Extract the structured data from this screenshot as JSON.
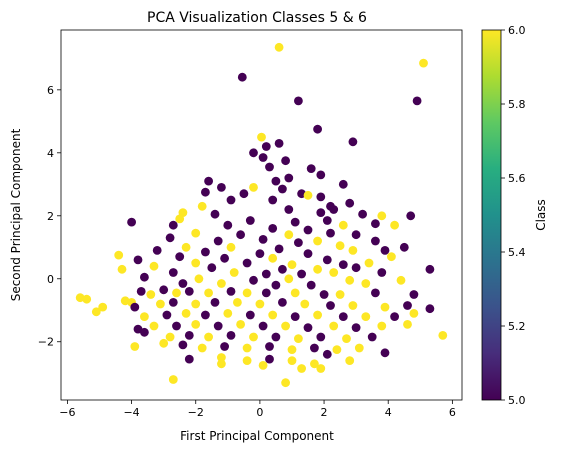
{
  "chart_data": {
    "type": "scatter",
    "title": "PCA Visualization Classes 5 & 6",
    "xlabel": "First Principal Component",
    "ylabel": "Second Principal Component",
    "xlim": [
      -6.2,
      6.3
    ],
    "ylim": [
      -3.85,
      7.9
    ],
    "xticks": [
      -6,
      -4,
      -2,
      0,
      2,
      4,
      6
    ],
    "yticks": [
      -2,
      0,
      2,
      4,
      6
    ],
    "grid": false,
    "colorbar": {
      "label": "Class",
      "colormap": "viridis",
      "range": [
        5.0,
        6.0
      ],
      "ticks": [
        "5.0",
        "5.2",
        "5.4",
        "5.6",
        "5.8",
        "6.0"
      ]
    },
    "classes": [
      {
        "value": 5,
        "color": "#440154"
      },
      {
        "value": 6,
        "color": "#fde725"
      }
    ],
    "points": [
      {
        "x": 0.6,
        "y": 7.35,
        "c": 6
      },
      {
        "x": 5.1,
        "y": 6.85,
        "c": 6
      },
      {
        "x": -0.55,
        "y": 6.4,
        "c": 5
      },
      {
        "x": 4.9,
        "y": 5.65,
        "c": 5
      },
      {
        "x": 1.2,
        "y": 5.65,
        "c": 5
      },
      {
        "x": 1.8,
        "y": 4.75,
        "c": 5
      },
      {
        "x": 0.05,
        "y": 4.5,
        "c": 6
      },
      {
        "x": 2.9,
        "y": 4.35,
        "c": 5
      },
      {
        "x": 0.6,
        "y": 4.3,
        "c": 5
      },
      {
        "x": 0.2,
        "y": 4.2,
        "c": 5
      },
      {
        "x": -0.2,
        "y": 4.0,
        "c": 5
      },
      {
        "x": 0.1,
        "y": 3.85,
        "c": 5
      },
      {
        "x": 0.8,
        "y": 3.75,
        "c": 5
      },
      {
        "x": 1.6,
        "y": 3.5,
        "c": 5
      },
      {
        "x": 0.3,
        "y": 3.55,
        "c": 5
      },
      {
        "x": 0.9,
        "y": 3.2,
        "c": 5
      },
      {
        "x": 0.5,
        "y": 3.1,
        "c": 5
      },
      {
        "x": -1.6,
        "y": 3.1,
        "c": 5
      },
      {
        "x": 1.9,
        "y": 3.3,
        "c": 5
      },
      {
        "x": -0.2,
        "y": 2.9,
        "c": 6
      },
      {
        "x": -1.2,
        "y": 2.9,
        "c": 5
      },
      {
        "x": 2.6,
        "y": 3.0,
        "c": 5
      },
      {
        "x": 0.7,
        "y": 2.85,
        "c": 5
      },
      {
        "x": 1.3,
        "y": 2.7,
        "c": 5
      },
      {
        "x": -1.7,
        "y": 2.75,
        "c": 5
      },
      {
        "x": -0.5,
        "y": 2.7,
        "c": 5
      },
      {
        "x": 1.9,
        "y": 2.6,
        "c": 5
      },
      {
        "x": 1.5,
        "y": 2.65,
        "c": 6
      },
      {
        "x": 0.4,
        "y": 2.5,
        "c": 5
      },
      {
        "x": -0.9,
        "y": 2.5,
        "c": 5
      },
      {
        "x": 2.8,
        "y": 2.4,
        "c": 5
      },
      {
        "x": 2.2,
        "y": 2.3,
        "c": 5
      },
      {
        "x": -1.8,
        "y": 2.3,
        "c": 6
      },
      {
        "x": 0.9,
        "y": 2.2,
        "c": 5
      },
      {
        "x": 1.9,
        "y": 2.1,
        "c": 5
      },
      {
        "x": 2.3,
        "y": 2.2,
        "c": 5
      },
      {
        "x": -2.4,
        "y": 2.1,
        "c": 6
      },
      {
        "x": -1.4,
        "y": 2.05,
        "c": 5
      },
      {
        "x": 3.2,
        "y": 2.05,
        "c": 5
      },
      {
        "x": 4.7,
        "y": 2.0,
        "c": 5
      },
      {
        "x": -2.5,
        "y": 1.9,
        "c": 6
      },
      {
        "x": -0.3,
        "y": 1.85,
        "c": 5
      },
      {
        "x": 1.1,
        "y": 1.8,
        "c": 5
      },
      {
        "x": 2.1,
        "y": 1.85,
        "c": 5
      },
      {
        "x": 3.8,
        "y": 2.0,
        "c": 6
      },
      {
        "x": 4.2,
        "y": 1.7,
        "c": 6
      },
      {
        "x": -4.0,
        "y": 1.8,
        "c": 5
      },
      {
        "x": -2.7,
        "y": 1.7,
        "c": 5
      },
      {
        "x": -1.0,
        "y": 1.7,
        "c": 5
      },
      {
        "x": 0.4,
        "y": 1.6,
        "c": 5
      },
      {
        "x": 1.5,
        "y": 1.55,
        "c": 5
      },
      {
        "x": 2.6,
        "y": 1.7,
        "c": 6
      },
      {
        "x": 3.6,
        "y": 1.75,
        "c": 5
      },
      {
        "x": -2.0,
        "y": 1.45,
        "c": 6
      },
      {
        "x": -0.6,
        "y": 1.4,
        "c": 5
      },
      {
        "x": 0.9,
        "y": 1.4,
        "c": 6
      },
      {
        "x": 2.2,
        "y": 1.45,
        "c": 5
      },
      {
        "x": 3.0,
        "y": 1.4,
        "c": 5
      },
      {
        "x": -2.8,
        "y": 1.3,
        "c": 5
      },
      {
        "x": -1.3,
        "y": 1.2,
        "c": 5
      },
      {
        "x": 0.1,
        "y": 1.25,
        "c": 5
      },
      {
        "x": 1.2,
        "y": 1.15,
        "c": 5
      },
      {
        "x": 1.8,
        "y": 1.2,
        "c": 6
      },
      {
        "x": 3.6,
        "y": 1.2,
        "c": 5
      },
      {
        "x": -2.3,
        "y": 1.0,
        "c": 6
      },
      {
        "x": -0.9,
        "y": 1.0,
        "c": 6
      },
      {
        "x": 0.6,
        "y": 0.95,
        "c": 5
      },
      {
        "x": 2.5,
        "y": 1.05,
        "c": 6
      },
      {
        "x": 4.5,
        "y": 1.0,
        "c": 5
      },
      {
        "x": -3.2,
        "y": 0.9,
        "c": 5
      },
      {
        "x": -1.7,
        "y": 0.85,
        "c": 5
      },
      {
        "x": 0.0,
        "y": 0.8,
        "c": 5
      },
      {
        "x": 1.5,
        "y": 0.8,
        "c": 5
      },
      {
        "x": 2.9,
        "y": 0.9,
        "c": 6
      },
      {
        "x": 3.9,
        "y": 0.9,
        "c": 5
      },
      {
        "x": -4.4,
        "y": 0.75,
        "c": 6
      },
      {
        "x": -2.5,
        "y": 0.7,
        "c": 5
      },
      {
        "x": -1.1,
        "y": 0.65,
        "c": 5
      },
      {
        "x": 0.4,
        "y": 0.65,
        "c": 6
      },
      {
        "x": 2.1,
        "y": 0.6,
        "c": 5
      },
      {
        "x": 4.1,
        "y": 0.7,
        "c": 6
      },
      {
        "x": -3.8,
        "y": 0.6,
        "c": 5
      },
      {
        "x": -2.0,
        "y": 0.5,
        "c": 6
      },
      {
        "x": -0.4,
        "y": 0.5,
        "c": 5
      },
      {
        "x": 1.0,
        "y": 0.45,
        "c": 6
      },
      {
        "x": 2.6,
        "y": 0.45,
        "c": 5
      },
      {
        "x": 3.4,
        "y": 0.5,
        "c": 6
      },
      {
        "x": -3.3,
        "y": 0.4,
        "c": 6
      },
      {
        "x": -1.5,
        "y": 0.35,
        "c": 5
      },
      {
        "x": 0.7,
        "y": 0.3,
        "c": 5
      },
      {
        "x": 1.8,
        "y": 0.3,
        "c": 6
      },
      {
        "x": 3.0,
        "y": 0.35,
        "c": 5
      },
      {
        "x": 5.3,
        "y": 0.3,
        "c": 5
      },
      {
        "x": -4.3,
        "y": 0.3,
        "c": 6
      },
      {
        "x": -2.7,
        "y": 0.2,
        "c": 5
      },
      {
        "x": -0.8,
        "y": 0.2,
        "c": 6
      },
      {
        "x": 0.2,
        "y": 0.15,
        "c": 5
      },
      {
        "x": 1.3,
        "y": 0.15,
        "c": 5
      },
      {
        "x": 2.3,
        "y": 0.2,
        "c": 6
      },
      {
        "x": 3.8,
        "y": 0.2,
        "c": 5
      },
      {
        "x": -3.6,
        "y": 0.05,
        "c": 5
      },
      {
        "x": -1.9,
        "y": 0.0,
        "c": 6
      },
      {
        "x": -0.2,
        "y": -0.05,
        "c": 5
      },
      {
        "x": 0.9,
        "y": 0.0,
        "c": 6
      },
      {
        "x": 2.8,
        "y": -0.05,
        "c": 6
      },
      {
        "x": 4.4,
        "y": -0.05,
        "c": 6
      },
      {
        "x": -2.4,
        "y": -0.15,
        "c": 5
      },
      {
        "x": -1.2,
        "y": -0.15,
        "c": 6
      },
      {
        "x": 0.5,
        "y": -0.2,
        "c": 5
      },
      {
        "x": 1.6,
        "y": -0.2,
        "c": 5
      },
      {
        "x": 3.3,
        "y": -0.15,
        "c": 6
      },
      {
        "x": -5.6,
        "y": -0.6,
        "c": 6
      },
      {
        "x": -5.4,
        "y": -0.65,
        "c": 6
      },
      {
        "x": -4.9,
        "y": -0.9,
        "c": 6
      },
      {
        "x": -5.1,
        "y": -1.05,
        "c": 6
      },
      {
        "x": -4.2,
        "y": -0.7,
        "c": 6
      },
      {
        "x": -4.0,
        "y": -0.75,
        "c": 6
      },
      {
        "x": -3.7,
        "y": -0.4,
        "c": 5
      },
      {
        "x": -3.4,
        "y": -0.5,
        "c": 6
      },
      {
        "x": -3.0,
        "y": -0.35,
        "c": 5
      },
      {
        "x": -2.6,
        "y": -0.45,
        "c": 6
      },
      {
        "x": -2.2,
        "y": -0.4,
        "c": 5
      },
      {
        "x": -1.6,
        "y": -0.45,
        "c": 6
      },
      {
        "x": -0.9,
        "y": -0.4,
        "c": 5
      },
      {
        "x": -0.4,
        "y": -0.45,
        "c": 6
      },
      {
        "x": 0.2,
        "y": -0.45,
        "c": 5
      },
      {
        "x": 1.1,
        "y": -0.45,
        "c": 6
      },
      {
        "x": 2.0,
        "y": -0.5,
        "c": 5
      },
      {
        "x": 2.5,
        "y": -0.5,
        "c": 6
      },
      {
        "x": 3.6,
        "y": -0.45,
        "c": 5
      },
      {
        "x": 4.8,
        "y": -0.5,
        "c": 5
      },
      {
        "x": -3.9,
        "y": -0.9,
        "c": 5
      },
      {
        "x": -3.1,
        "y": -0.8,
        "c": 6
      },
      {
        "x": -2.7,
        "y": -0.75,
        "c": 5
      },
      {
        "x": -2.0,
        "y": -0.8,
        "c": 6
      },
      {
        "x": -1.4,
        "y": -0.75,
        "c": 5
      },
      {
        "x": -0.7,
        "y": -0.75,
        "c": 6
      },
      {
        "x": 0.0,
        "y": -0.8,
        "c": 6
      },
      {
        "x": 0.7,
        "y": -0.75,
        "c": 5
      },
      {
        "x": 1.4,
        "y": -0.8,
        "c": 6
      },
      {
        "x": 2.2,
        "y": -0.85,
        "c": 5
      },
      {
        "x": 2.9,
        "y": -0.85,
        "c": 6
      },
      {
        "x": 3.9,
        "y": -0.9,
        "c": 6
      },
      {
        "x": 4.6,
        "y": -0.85,
        "c": 5
      },
      {
        "x": -3.6,
        "y": -1.2,
        "c": 6
      },
      {
        "x": -2.9,
        "y": -1.15,
        "c": 5
      },
      {
        "x": -2.3,
        "y": -1.1,
        "c": 6
      },
      {
        "x": -1.7,
        "y": -1.15,
        "c": 5
      },
      {
        "x": -1.0,
        "y": -1.1,
        "c": 6
      },
      {
        "x": -0.3,
        "y": -1.15,
        "c": 5
      },
      {
        "x": 0.4,
        "y": -1.15,
        "c": 6
      },
      {
        "x": 1.1,
        "y": -1.2,
        "c": 5
      },
      {
        "x": 1.8,
        "y": -1.15,
        "c": 6
      },
      {
        "x": 2.6,
        "y": -1.2,
        "c": 5
      },
      {
        "x": 3.3,
        "y": -1.2,
        "c": 6
      },
      {
        "x": 4.2,
        "y": -1.2,
        "c": 5
      },
      {
        "x": 4.8,
        "y": -1.1,
        "c": 6
      },
      {
        "x": 5.3,
        "y": -0.95,
        "c": 5
      },
      {
        "x": -3.8,
        "y": -1.6,
        "c": 5
      },
      {
        "x": -3.3,
        "y": -1.5,
        "c": 6
      },
      {
        "x": -2.6,
        "y": -1.5,
        "c": 5
      },
      {
        "x": -2.0,
        "y": -1.45,
        "c": 6
      },
      {
        "x": -1.3,
        "y": -1.5,
        "c": 5
      },
      {
        "x": -0.6,
        "y": -1.45,
        "c": 6
      },
      {
        "x": 0.1,
        "y": -1.5,
        "c": 5
      },
      {
        "x": 0.8,
        "y": -1.5,
        "c": 6
      },
      {
        "x": 1.5,
        "y": -1.55,
        "c": 5
      },
      {
        "x": 2.3,
        "y": -1.5,
        "c": 6
      },
      {
        "x": 3.0,
        "y": -1.55,
        "c": 5
      },
      {
        "x": 3.8,
        "y": -1.5,
        "c": 6
      },
      {
        "x": 4.6,
        "y": -1.45,
        "c": 6
      },
      {
        "x": -3.6,
        "y": -1.7,
        "c": 5
      },
      {
        "x": -2.8,
        "y": -1.85,
        "c": 6
      },
      {
        "x": -2.2,
        "y": -1.8,
        "c": 5
      },
      {
        "x": -1.6,
        "y": -1.85,
        "c": 6
      },
      {
        "x": -0.9,
        "y": -1.8,
        "c": 5
      },
      {
        "x": -0.2,
        "y": -1.85,
        "c": 6
      },
      {
        "x": 0.5,
        "y": -1.85,
        "c": 5
      },
      {
        "x": 1.2,
        "y": -1.9,
        "c": 6
      },
      {
        "x": 1.9,
        "y": -1.85,
        "c": 5
      },
      {
        "x": 2.7,
        "y": -1.9,
        "c": 6
      },
      {
        "x": 3.5,
        "y": -1.85,
        "c": 5
      },
      {
        "x": 5.7,
        "y": -1.8,
        "c": 6
      },
      {
        "x": -3.9,
        "y": -2.15,
        "c": 6
      },
      {
        "x": -3.0,
        "y": -2.05,
        "c": 6
      },
      {
        "x": -2.4,
        "y": -2.1,
        "c": 5
      },
      {
        "x": -1.8,
        "y": -2.2,
        "c": 6
      },
      {
        "x": -1.1,
        "y": -2.15,
        "c": 5
      },
      {
        "x": -0.4,
        "y": -2.2,
        "c": 6
      },
      {
        "x": 0.3,
        "y": -2.15,
        "c": 5
      },
      {
        "x": 1.0,
        "y": -2.25,
        "c": 6
      },
      {
        "x": 1.7,
        "y": -2.2,
        "c": 5
      },
      {
        "x": 2.4,
        "y": -2.25,
        "c": 6
      },
      {
        "x": 3.1,
        "y": -2.2,
        "c": 6
      },
      {
        "x": 3.9,
        "y": -2.35,
        "c": 5
      },
      {
        "x": -2.2,
        "y": -2.55,
        "c": 5
      },
      {
        "x": -1.2,
        "y": -2.5,
        "c": 6
      },
      {
        "x": -0.4,
        "y": -2.6,
        "c": 6
      },
      {
        "x": 0.3,
        "y": -2.55,
        "c": 5
      },
      {
        "x": 1.0,
        "y": -2.6,
        "c": 6
      },
      {
        "x": 1.7,
        "y": -2.7,
        "c": 6
      },
      {
        "x": 2.1,
        "y": -2.4,
        "c": 5
      },
      {
        "x": 2.8,
        "y": -2.6,
        "c": 6
      },
      {
        "x": -1.2,
        "y": -2.7,
        "c": 6
      },
      {
        "x": 0.1,
        "y": -2.75,
        "c": 6
      },
      {
        "x": 1.3,
        "y": -2.85,
        "c": 6
      },
      {
        "x": 1.9,
        "y": -2.85,
        "c": 6
      },
      {
        "x": -2.7,
        "y": -3.2,
        "c": 6
      },
      {
        "x": 0.8,
        "y": -3.3,
        "c": 6
      }
    ]
  }
}
